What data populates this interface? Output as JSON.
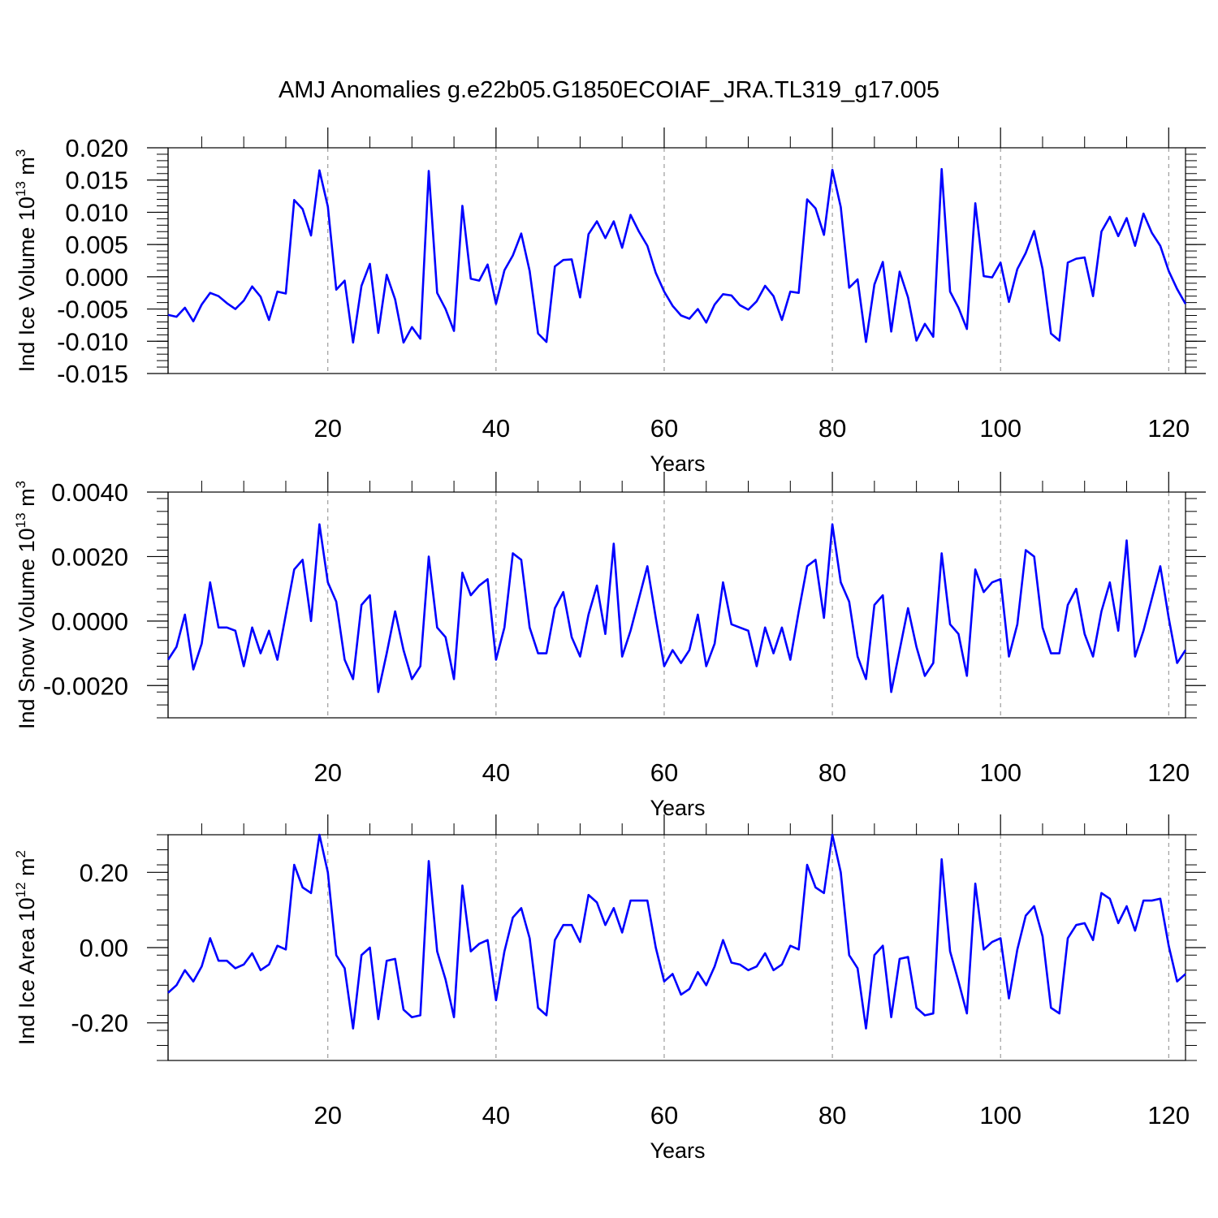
{
  "title": "AMJ Anomalies g.e22b05.G1850ECOIAF_JRA.TL319_g17.005",
  "colors": {
    "line": "#0000ff",
    "frame": "#000000",
    "grid": "#888888"
  },
  "chart_data": [
    {
      "type": "line",
      "xlabel": "Years",
      "ylabel_main": "Ind Ice Volume 10",
      "ylabel_exp": "13",
      "ylabel_unit": " m",
      "ylabel_unit_exp": "3",
      "xlim": [
        1,
        122
      ],
      "ylim": [
        -0.015,
        0.02
      ],
      "xticks": [
        "20",
        "40",
        "60",
        "80",
        "100",
        "120"
      ],
      "xtick_values": [
        20,
        40,
        60,
        80,
        100,
        120
      ],
      "yticks": [
        "-0.015",
        "-0.010",
        "-0.005",
        "0.000",
        "0.005",
        "0.010",
        "0.015",
        "0.020"
      ],
      "ytick_values": [
        -0.015,
        -0.01,
        -0.005,
        0.0,
        0.005,
        0.01,
        0.015,
        0.02
      ],
      "grid_x": [
        20,
        40,
        60,
        80,
        100,
        120
      ],
      "series": [
        {
          "x_start": 1,
          "values": [
            -0.0059,
            -0.0062,
            -0.0048,
            -0.0069,
            -0.0043,
            -0.0025,
            -0.003,
            -0.0041,
            -0.005,
            -0.0037,
            -0.0015,
            -0.0031,
            -0.0067,
            -0.0023,
            -0.0026,
            0.0119,
            0.0105,
            0.0064,
            0.0165,
            0.0109,
            -0.002,
            -0.0006,
            -0.0102,
            -0.0014,
            0.002,
            -0.0087,
            0.0003,
            -0.0035,
            -0.0102,
            -0.0078,
            -0.0096,
            0.0164,
            -0.0025,
            -0.005,
            -0.0084,
            0.011,
            -0.0003,
            -0.0006,
            0.0019,
            -0.0042,
            0.001,
            0.0033,
            0.0067,
            0.0009,
            -0.0088,
            -0.0101,
            0.0016,
            0.0026,
            0.0027,
            -0.0032,
            0.0066,
            0.0086,
            0.006,
            0.0086,
            0.0045,
            0.0096,
            0.007,
            0.0048,
            0.0006,
            -0.0023,
            -0.0045,
            -0.006,
            -0.0065,
            -0.005,
            -0.0071,
            -0.0043,
            -0.0027,
            -0.0029,
            -0.0044,
            -0.0051,
            -0.0038,
            -0.0014,
            -0.003,
            -0.0067,
            -0.0023,
            -0.0025,
            0.012,
            0.0106,
            0.0065,
            0.0166,
            0.0108,
            -0.0017,
            -0.0004,
            -0.0101,
            -0.0012,
            0.0023,
            -0.0085,
            0.0008,
            -0.0032,
            -0.0099,
            -0.0073,
            -0.0093,
            0.0167,
            -0.0023,
            -0.0048,
            -0.0081,
            0.0114,
            0.0001,
            -0.0001,
            0.0022,
            -0.0039,
            0.0012,
            0.0037,
            0.0071,
            0.0012,
            -0.0088,
            -0.0099,
            0.0022,
            0.0028,
            0.003,
            -0.003,
            0.007,
            0.0093,
            0.0063,
            0.0091,
            0.0048,
            0.0098,
            0.0068,
            0.0048,
            0.0009,
            -0.0019,
            -0.0042
          ]
        }
      ]
    },
    {
      "type": "line",
      "xlabel": "Years",
      "ylabel_main": "Ind Snow Volume 10",
      "ylabel_exp": "13",
      "ylabel_unit": " m",
      "ylabel_unit_exp": "3",
      "xlim": [
        1,
        122
      ],
      "ylim": [
        -0.003,
        0.004
      ],
      "xticks": [
        "20",
        "40",
        "60",
        "80",
        "100",
        "120"
      ],
      "xtick_values": [
        20,
        40,
        60,
        80,
        100,
        120
      ],
      "yticks": [
        "-0.0020",
        "0.0000",
        "0.0020",
        "0.0040"
      ],
      "ytick_values": [
        -0.002,
        0.0,
        0.002,
        0.004
      ],
      "grid_x": [
        20,
        40,
        60,
        80,
        100,
        120
      ],
      "series": [
        {
          "x_start": 1,
          "values": [
            -0.0012,
            -0.0008,
            0.0002,
            -0.0015,
            -0.0007,
            0.0012,
            -0.0002,
            -0.0002,
            -0.0003,
            -0.0014,
            -0.0002,
            -0.001,
            -0.0003,
            -0.0012,
            0.0002,
            0.0016,
            0.0019,
            0.0,
            0.003,
            0.0012,
            0.0006,
            -0.0012,
            -0.0018,
            0.0005,
            0.0008,
            -0.0022,
            -0.001,
            0.0003,
            -0.0009,
            -0.0018,
            -0.0014,
            0.002,
            -0.0002,
            -0.0005,
            -0.0018,
            0.0015,
            0.0008,
            0.0011,
            0.0013,
            -0.0012,
            -0.0002,
            0.0021,
            0.0019,
            -0.0002,
            -0.001,
            -0.001,
            0.0004,
            0.0009,
            -0.0005,
            -0.0011,
            0.0002,
            0.0011,
            -0.0004,
            0.0024,
            -0.0011,
            -0.0003,
            0.0007,
            0.0017,
            0.0001,
            -0.0014,
            -0.0009,
            -0.0013,
            -0.0009,
            0.0002,
            -0.0014,
            -0.0007,
            0.0012,
            -0.0001,
            -0.0002,
            -0.0003,
            -0.0014,
            -0.0002,
            -0.001,
            -0.0002,
            -0.0012,
            0.0003,
            0.0017,
            0.0019,
            0.0001,
            0.003,
            0.0012,
            0.0006,
            -0.0011,
            -0.0018,
            0.0005,
            0.0008,
            -0.0022,
            -0.0009,
            0.0004,
            -0.0008,
            -0.0017,
            -0.0013,
            0.0021,
            -0.0001,
            -0.0004,
            -0.0017,
            0.0016,
            0.0009,
            0.0012,
            0.0013,
            -0.0011,
            -0.0001,
            0.0022,
            0.002,
            -0.0002,
            -0.001,
            -0.001,
            0.0005,
            0.001,
            -0.0004,
            -0.0011,
            0.0003,
            0.0012,
            -0.0003,
            0.0025,
            -0.0011,
            -0.0003,
            0.0007,
            0.0017,
            0.0001,
            -0.0013,
            -0.0009
          ]
        }
      ]
    },
    {
      "type": "line",
      "xlabel": "Years",
      "ylabel_main": "Ind Ice Area 10",
      "ylabel_exp": "12",
      "ylabel_unit": " m",
      "ylabel_unit_exp": "2",
      "xlim": [
        1,
        122
      ],
      "ylim": [
        -0.3,
        0.3
      ],
      "xticks": [
        "20",
        "40",
        "60",
        "80",
        "100",
        "120"
      ],
      "xtick_values": [
        20,
        40,
        60,
        80,
        100,
        120
      ],
      "yticks": [
        "-0.20",
        "0.00",
        "0.20"
      ],
      "ytick_values": [
        -0.2,
        0.0,
        0.2
      ],
      "grid_x": [
        20,
        40,
        60,
        80,
        100,
        120
      ],
      "series": [
        {
          "x_start": 1,
          "values": [
            -0.12,
            -0.1,
            -0.06,
            -0.09,
            -0.05,
            0.025,
            -0.035,
            -0.035,
            -0.055,
            -0.045,
            -0.015,
            -0.06,
            -0.045,
            0.005,
            -0.005,
            0.22,
            0.16,
            0.145,
            0.3,
            0.2,
            -0.02,
            -0.055,
            -0.215,
            -0.02,
            0.0,
            -0.19,
            -0.035,
            -0.03,
            -0.165,
            -0.185,
            -0.18,
            0.23,
            -0.01,
            -0.085,
            -0.185,
            0.165,
            -0.01,
            0.01,
            0.02,
            -0.14,
            -0.01,
            0.08,
            0.105,
            0.025,
            -0.16,
            -0.18,
            0.02,
            0.06,
            0.06,
            0.015,
            0.14,
            0.12,
            0.06,
            0.105,
            0.04,
            0.125,
            0.125,
            0.125,
            0.0,
            -0.09,
            -0.07,
            -0.125,
            -0.11,
            -0.065,
            -0.1,
            -0.05,
            0.02,
            -0.04,
            -0.045,
            -0.06,
            -0.05,
            -0.015,
            -0.06,
            -0.045,
            0.005,
            -0.005,
            0.22,
            0.16,
            0.145,
            0.3,
            0.2,
            -0.02,
            -0.055,
            -0.215,
            -0.02,
            0.005,
            -0.185,
            -0.03,
            -0.025,
            -0.16,
            -0.18,
            -0.175,
            0.235,
            -0.01,
            -0.09,
            -0.175,
            0.17,
            -0.005,
            0.015,
            0.025,
            -0.135,
            -0.005,
            0.085,
            0.11,
            0.03,
            -0.16,
            -0.175,
            0.025,
            0.06,
            0.065,
            0.02,
            0.145,
            0.13,
            0.065,
            0.11,
            0.045,
            0.125,
            0.125,
            0.13,
            0.005,
            -0.09,
            -0.07
          ]
        }
      ]
    }
  ]
}
